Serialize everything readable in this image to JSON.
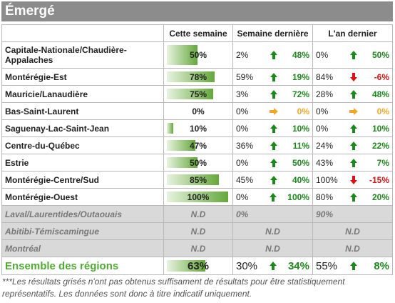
{
  "header": {
    "title": "Émergé"
  },
  "table": {
    "columns": [
      "Cette semaine",
      "Semaine dernière",
      "L'an dernier"
    ],
    "rows": [
      {
        "region": "Capitale-Nationale/Chaudière-Appalaches",
        "this_week": {
          "value": 50,
          "label": "50%"
        },
        "last_week": {
          "share": "2%",
          "change": "48%",
          "trend": "up"
        },
        "last_year": {
          "share": "0%",
          "change": "50%",
          "trend": "up"
        }
      },
      {
        "region": "Montérégie-Est",
        "this_week": {
          "value": 78,
          "label": "78%"
        },
        "last_week": {
          "share": "59%",
          "change": "19%",
          "trend": "up"
        },
        "last_year": {
          "share": "84%",
          "change": "-6%",
          "trend": "down"
        }
      },
      {
        "region": "Mauricie/Lanaudière",
        "this_week": {
          "value": 75,
          "label": "75%"
        },
        "last_week": {
          "share": "3%",
          "change": "72%",
          "trend": "up"
        },
        "last_year": {
          "share": "28%",
          "change": "48%",
          "trend": "up"
        }
      },
      {
        "region": "Bas-Saint-Laurent",
        "this_week": {
          "value": 0,
          "label": "0%"
        },
        "last_week": {
          "share": "0%",
          "change": "0%",
          "trend": "flat"
        },
        "last_year": {
          "share": "0%",
          "change": "0%",
          "trend": "flat"
        }
      },
      {
        "region": "Saguenay-Lac-Saint-Jean",
        "this_week": {
          "value": 10,
          "label": "10%"
        },
        "last_week": {
          "share": "0%",
          "change": "10%",
          "trend": "up"
        },
        "last_year": {
          "share": "0%",
          "change": "10%",
          "trend": "up"
        }
      },
      {
        "region": "Centre-du-Québec",
        "this_week": {
          "value": 47,
          "label": "47%"
        },
        "last_week": {
          "share": "36%",
          "change": "11%",
          "trend": "up"
        },
        "last_year": {
          "share": "24%",
          "change": "22%",
          "trend": "up"
        }
      },
      {
        "region": "Estrie",
        "this_week": {
          "value": 50,
          "label": "50%"
        },
        "last_week": {
          "share": "0%",
          "change": "50%",
          "trend": "up"
        },
        "last_year": {
          "share": "43%",
          "change": "7%",
          "trend": "up"
        }
      },
      {
        "region": "Montérégie-Centre/Sud",
        "this_week": {
          "value": 85,
          "label": "85%"
        },
        "last_week": {
          "share": "45%",
          "change": "40%",
          "trend": "up"
        },
        "last_year": {
          "share": "100%",
          "change": "-15%",
          "trend": "down"
        }
      },
      {
        "region": "Montérégie-Ouest",
        "this_week": {
          "value": 100,
          "label": "100%"
        },
        "last_week": {
          "share": "0%",
          "change": "100%",
          "trend": "up"
        },
        "last_year": {
          "share": "80%",
          "change": "20%",
          "trend": "up"
        }
      }
    ],
    "insufficient_rows": [
      {
        "region": "Laval/Laurentides/Outaouais",
        "this_week": "N.D",
        "last_week": "0%",
        "last_year": "90%"
      },
      {
        "region": "Abitibi-Témiscamingue",
        "this_week": "N.D",
        "last_week": "N.D",
        "last_year": "N.D"
      },
      {
        "region": "Montréal",
        "this_week": "N.D",
        "last_week": "N.D",
        "last_year": "N.D"
      }
    ],
    "total": {
      "region": "Ensemble des régions",
      "this_week": {
        "value": 63,
        "label": "63%"
      },
      "last_week": {
        "share": "30%",
        "change": "34%",
        "trend": "up"
      },
      "last_year": {
        "share": "55%",
        "change": "8%",
        "trend": "up"
      }
    }
  },
  "footnote": "***Les résultats grisés n'ont pas obtenus suffisament de résultats pour être statistiquement représentatifs. Les données sont donc à titre indicatif uniquement."
}
